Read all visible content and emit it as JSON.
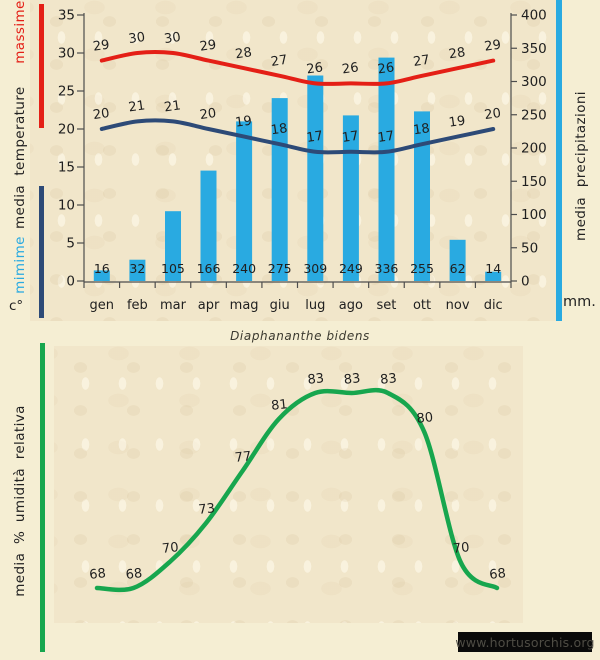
{
  "page": {
    "background": "#f5eed3",
    "watermark": {
      "text": "www.hortusorchis.org",
      "bg": "#0a0a0a",
      "color": "#4e4c44"
    }
  },
  "chart_data": [
    {
      "id": "temperature-precipitation",
      "type": "bar+line",
      "categories": [
        "gen",
        "feb",
        "mar",
        "apr",
        "mag",
        "giu",
        "lug",
        "ago",
        "set",
        "ott",
        "nov",
        "dic"
      ],
      "series": [
        {
          "name": "massime",
          "type": "line",
          "axis": "left",
          "color": "#e41f16",
          "values": [
            29,
            30,
            30,
            29,
            28,
            27,
            26,
            26,
            26,
            27,
            28,
            29
          ]
        },
        {
          "name": "mimime",
          "type": "line",
          "axis": "left",
          "color": "#2d4a77",
          "values": [
            20,
            21,
            21,
            20,
            19,
            18,
            17,
            17,
            17,
            18,
            19,
            20
          ]
        },
        {
          "name": "media precipitazioni",
          "type": "bar",
          "axis": "right",
          "color": "#29aae1",
          "values": [
            16,
            32,
            105,
            166,
            240,
            275,
            309,
            249,
            336,
            255,
            62,
            14
          ]
        }
      ],
      "left_axis": {
        "range": [
          0,
          35
        ],
        "ticks": [
          0,
          5,
          10,
          15,
          20,
          25,
          30,
          35
        ],
        "unit_label": "c°",
        "label_words": [
          {
            "text": "massime",
            "color": "#e41f16"
          },
          {
            "text": "temperature",
            "color": "#222222"
          },
          {
            "text": "media",
            "color": "#222222"
          },
          {
            "text": "mimime",
            "color": "#29aae1"
          }
        ]
      },
      "right_axis": {
        "range": [
          0,
          400
        ],
        "ticks": [
          0,
          50,
          100,
          150,
          200,
          250,
          300,
          350,
          400
        ],
        "label": "media precipitazioni",
        "unit_label": "mm."
      },
      "grid": false,
      "legend": "none",
      "data_labels": true
    },
    {
      "id": "humidity",
      "type": "line",
      "title": "Diaphananthe bidens",
      "values": [
        68,
        68,
        70,
        73,
        77,
        81,
        83,
        83,
        83,
        80,
        70,
        68
      ],
      "color": "#17a64e",
      "ylabel": "media % umidità relativa",
      "grid": false,
      "legend": "none",
      "data_labels": true
    }
  ]
}
